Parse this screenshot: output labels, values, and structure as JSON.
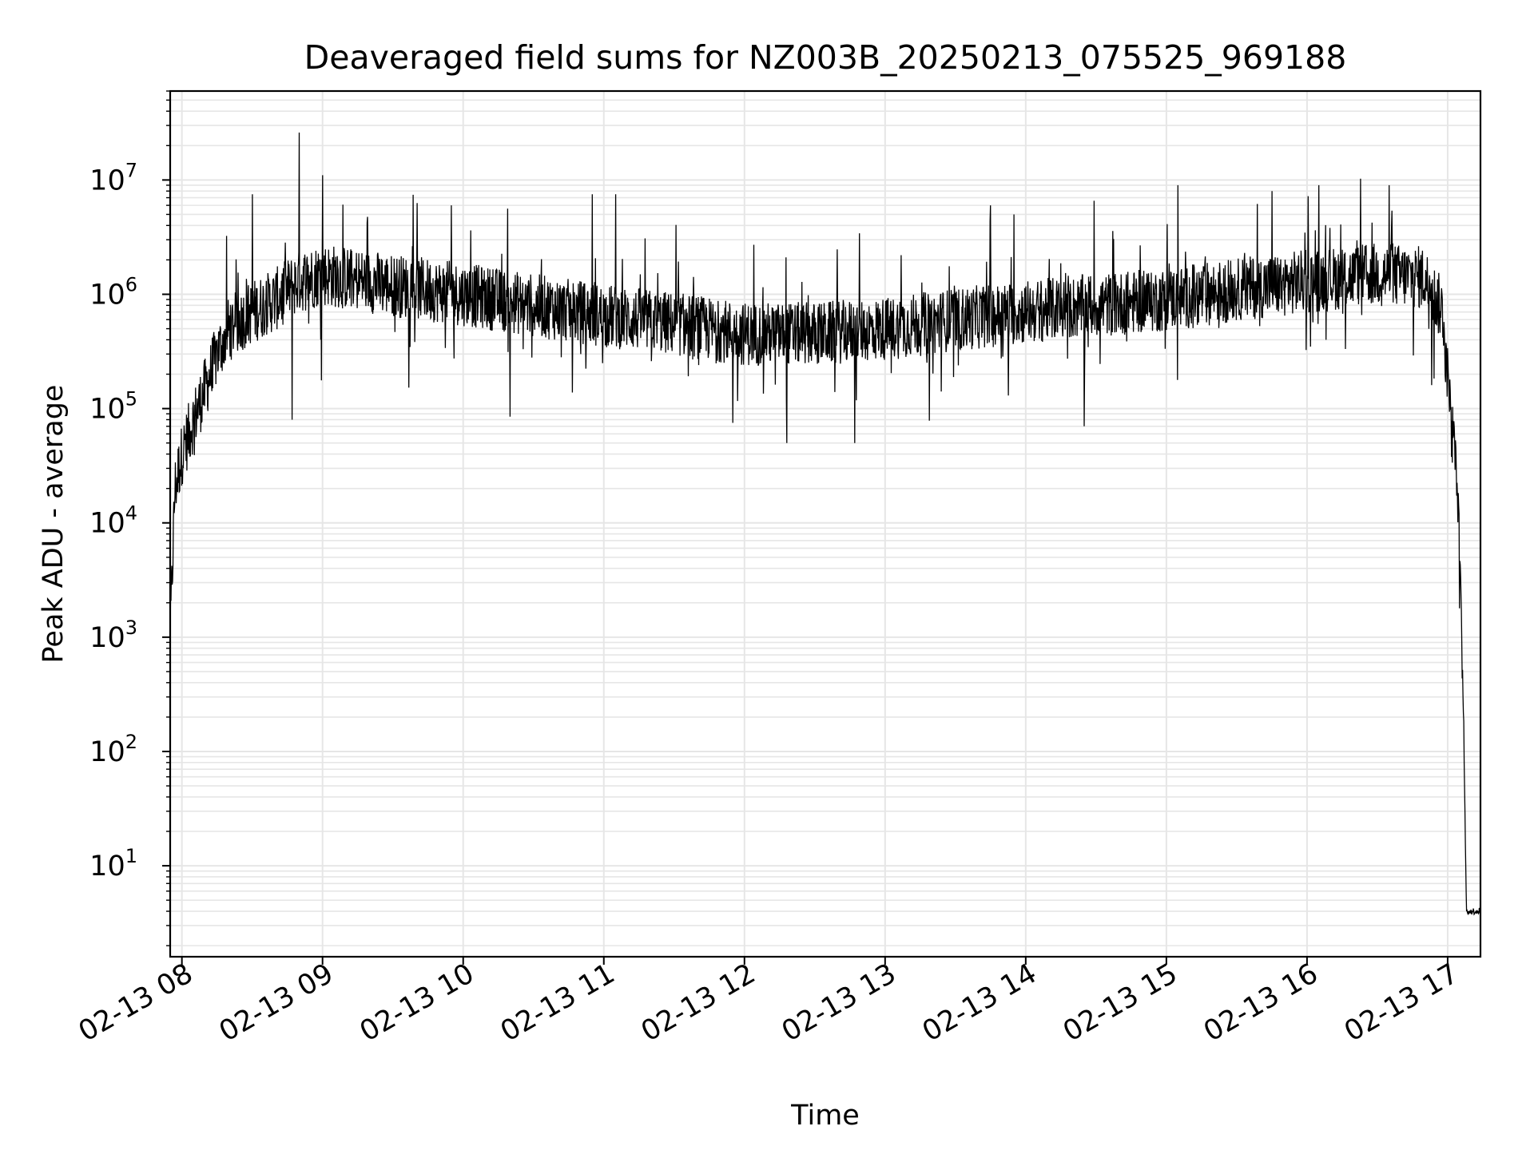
{
  "chart_data": {
    "type": "line",
    "title": "Deaveraged field sums for NZ003B_20250213_075525_969188",
    "xlabel": "Time",
    "ylabel": "Peak ADU - average",
    "y_scale": "log",
    "ylim": [
      1.6,
      60000000
    ],
    "xlim": [
      "2025-02-13 07:55",
      "2025-02-13 17:14"
    ],
    "x_ticks": [
      "02-13 08",
      "02-13 09",
      "02-13 10",
      "02-13 11",
      "02-13 12",
      "02-13 13",
      "02-13 14",
      "02-13 15",
      "02-13 16",
      "02-13 17"
    ],
    "y_ticks": [
      {
        "base": "10",
        "exp": "1",
        "value": 10
      },
      {
        "base": "10",
        "exp": "2",
        "value": 100
      },
      {
        "base": "10",
        "exp": "3",
        "value": 1000
      },
      {
        "base": "10",
        "exp": "4",
        "value": 10000
      },
      {
        "base": "10",
        "exp": "5",
        "value": 100000
      },
      {
        "base": "10",
        "exp": "6",
        "value": 1000000
      },
      {
        "base": "10",
        "exp": "7",
        "value": 10000000
      }
    ],
    "grid": true,
    "line_color": "#000000",
    "grid_color": "#e6e6e6",
    "series": [
      {
        "points": [
          [
            "2025-02-13 07:55",
            1000
          ],
          [
            "2025-02-13 07:57",
            20000
          ],
          [
            "2025-02-13 08:00",
            40000
          ],
          [
            "2025-02-13 08:05",
            80000
          ],
          [
            "2025-02-13 08:10",
            150000
          ],
          [
            "2025-02-13 08:15",
            300000
          ],
          [
            "2025-02-13 08:20",
            500000
          ],
          [
            "2025-02-13 08:30",
            700000
          ],
          [
            "2025-02-13 08:40",
            900000
          ],
          [
            "2025-02-13 08:50",
            1300000
          ],
          [
            "2025-02-13 09:00",
            1500000
          ],
          [
            "2025-02-13 09:30",
            1200000
          ],
          [
            "2025-02-13 10:00",
            1000000
          ],
          [
            "2025-02-13 10:30",
            800000
          ],
          [
            "2025-02-13 11:00",
            650000
          ],
          [
            "2025-02-13 11:30",
            550000
          ],
          [
            "2025-02-13 12:00",
            450000
          ],
          [
            "2025-02-13 12:30",
            450000
          ],
          [
            "2025-02-13 13:00",
            500000
          ],
          [
            "2025-02-13 13:30",
            600000
          ],
          [
            "2025-02-13 14:00",
            700000
          ],
          [
            "2025-02-13 14:30",
            800000
          ],
          [
            "2025-02-13 15:00",
            900000
          ],
          [
            "2025-02-13 15:30",
            1100000
          ],
          [
            "2025-02-13 16:00",
            1300000
          ],
          [
            "2025-02-13 16:30",
            1500000
          ],
          [
            "2025-02-13 16:50",
            1400000
          ],
          [
            "2025-02-13 16:58",
            700000
          ],
          [
            "2025-02-13 17:00",
            200000
          ],
          [
            "2025-02-13 17:03",
            50000
          ],
          [
            "2025-02-13 17:05",
            8000
          ],
          [
            "2025-02-13 17:07",
            100
          ],
          [
            "2025-02-13 17:08",
            4
          ],
          [
            "2025-02-13 17:14",
            4
          ]
        ],
        "spikes": [
          [
            "2025-02-13 08:30",
            7500000
          ],
          [
            "2025-02-13 08:50",
            26000000
          ],
          [
            "2025-02-13 09:00",
            11000000
          ],
          [
            "2025-02-13 08:47",
            80000
          ],
          [
            "2025-02-13 09:55",
            6000000
          ],
          [
            "2025-02-13 10:20",
            5000000
          ],
          [
            "2025-02-13 10:20",
            85000
          ],
          [
            "2025-02-13 10:55",
            7500000
          ],
          [
            "2025-02-13 11:05",
            7500000
          ],
          [
            "2025-02-13 11:55",
            3500000
          ],
          [
            "2025-02-13 11:55",
            75000
          ],
          [
            "2025-02-13 12:18",
            50000
          ],
          [
            "2025-02-13 12:47",
            50000
          ],
          [
            "2025-02-13 13:45",
            6000000
          ],
          [
            "2025-02-13 13:55",
            5000000
          ],
          [
            "2025-02-13 14:25",
            70000
          ],
          [
            "2025-02-13 15:05",
            9000000
          ],
          [
            "2025-02-13 15:45",
            8000000
          ],
          [
            "2025-02-13 16:05",
            9000000
          ],
          [
            "2025-02-13 16:35",
            9000000
          ]
        ]
      }
    ]
  }
}
